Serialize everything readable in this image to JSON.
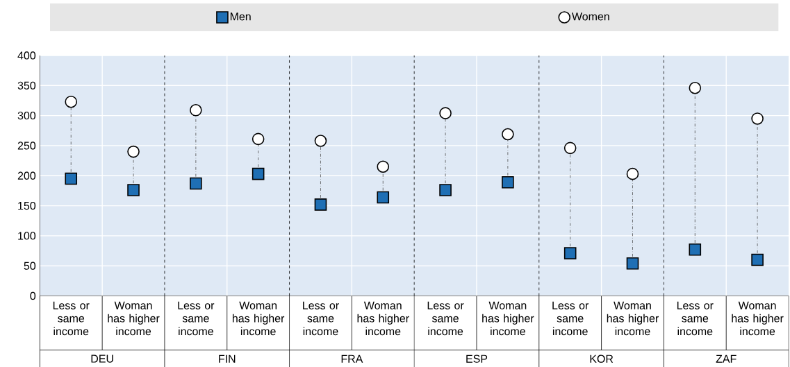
{
  "chart_data": {
    "type": "scatter",
    "categories": [
      "Less or same income",
      "Woman has higher income",
      "Less or same income",
      "Woman has higher income",
      "Less or same income",
      "Woman has higher income",
      "Less or same income",
      "Woman has higher income",
      "Less or same income",
      "Woman has higher income",
      "Less or same income",
      "Woman has higher income"
    ],
    "annotations": [
      "DEU",
      "FIN",
      "FRA",
      "ESP",
      "KOR",
      "ZAF"
    ],
    "series": [
      {
        "name": "Men",
        "color": "#1f6fb4",
        "marker": "square",
        "values": [
          195,
          176,
          187,
          203,
          152,
          164,
          176,
          189,
          71,
          54,
          77,
          60
        ]
      },
      {
        "name": "Women",
        "color": "#ffffff",
        "marker": "circle",
        "values": [
          323,
          240,
          309,
          261,
          258,
          215,
          304,
          269,
          246,
          203,
          346,
          295
        ]
      }
    ],
    "ylim": [
      0,
      400
    ],
    "yticks": [
      0,
      50,
      100,
      150,
      200,
      250,
      300,
      350,
      400
    ],
    "grid": "y",
    "legend": "top"
  }
}
